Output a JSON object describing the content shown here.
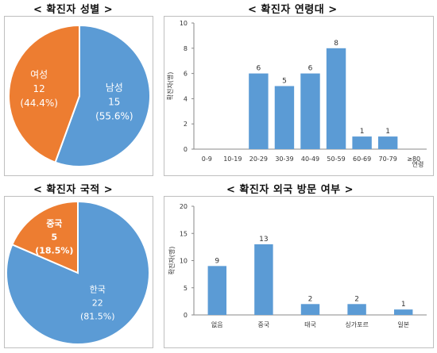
{
  "titles": {
    "gender": "< 확진자 성별 >",
    "age": "< 확진자 연령대 >",
    "nationality": "< 확진자 국적 >",
    "travel": "< 확진자 외국 방문 여부 >"
  },
  "colors": {
    "blue": "#5b9bd5",
    "orange": "#ed7d31"
  },
  "chart_data": [
    {
      "id": "gender",
      "type": "pie",
      "title": "< 확진자 성별 >",
      "slices": [
        {
          "label": "남성",
          "value": 15,
          "value_label": "15",
          "pct_label": "(55.6%)",
          "color": "#5b9bd5"
        },
        {
          "label": "여성",
          "value": 12,
          "value_label": "12",
          "pct_label": "(44.4%)",
          "color": "#ed7d31"
        }
      ]
    },
    {
      "id": "age",
      "type": "bar",
      "title": "< 확진자 연령대 >",
      "ylabel": "확진자(명)",
      "xlabel": "연령",
      "ylim": [
        0,
        10
      ],
      "yticks": [
        "0",
        "2",
        "4",
        "6",
        "8",
        "10"
      ],
      "categories": [
        "0-9",
        "10-19",
        "20-29",
        "30-39",
        "40-49",
        "50-59",
        "60-69",
        "70-79",
        "≥80"
      ],
      "values": [
        0,
        0,
        6,
        5,
        6,
        8,
        1,
        1,
        0
      ],
      "data_labels": [
        "",
        "",
        "6",
        "5",
        "6",
        "8",
        "1",
        "1",
        ""
      ]
    },
    {
      "id": "nationality",
      "type": "pie",
      "title": "< 확진자 국적 >",
      "slices": [
        {
          "label": "한국",
          "value": 22,
          "value_label": "22",
          "pct_label": "(81.5%)",
          "color": "#5b9bd5"
        },
        {
          "label": "중국",
          "value": 5,
          "value_label": "5",
          "pct_label": "(18.5%)",
          "color": "#ed7d31"
        }
      ]
    },
    {
      "id": "travel",
      "type": "bar",
      "title": "< 확진자 외국 방문 여부 >",
      "ylabel": "확진자(명)",
      "ylim": [
        0,
        20
      ],
      "yticks": [
        "0",
        "5",
        "10",
        "15",
        "20"
      ],
      "categories": [
        "없음",
        "중국",
        "태국",
        "싱가포르",
        "일본"
      ],
      "values": [
        9,
        13,
        2,
        2,
        1
      ],
      "data_labels": [
        "9",
        "13",
        "2",
        "2",
        "1"
      ]
    }
  ]
}
